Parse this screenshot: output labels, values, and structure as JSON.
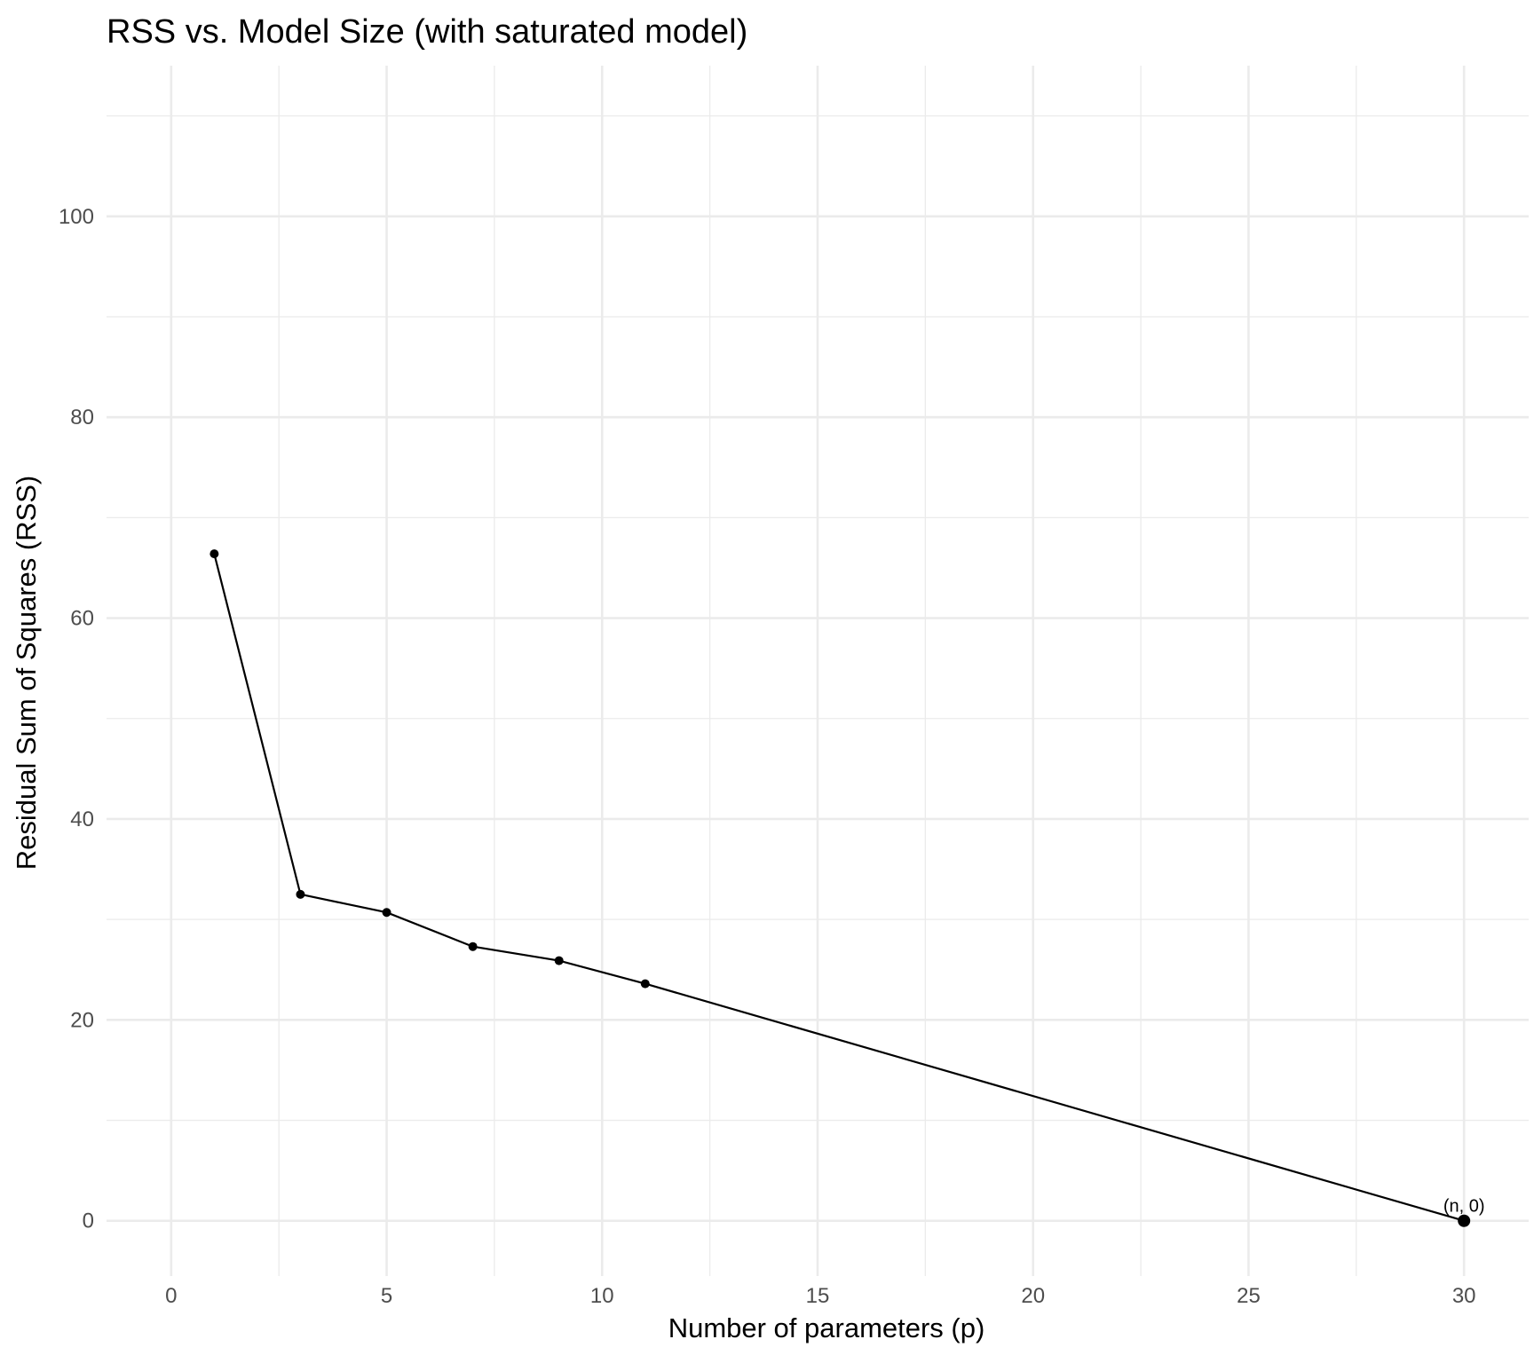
{
  "chart_data": {
    "type": "line",
    "title": "RSS vs. Model Size (with saturated model)",
    "xlabel": "Number of parameters (p)",
    "ylabel": "Residual Sum of Squares (RSS)",
    "xlim": [
      -1.5,
      31.5
    ],
    "ylim": [
      -5.5,
      115
    ],
    "x_ticks": [
      0,
      5,
      10,
      15,
      20,
      25,
      30
    ],
    "y_ticks": [
      0,
      20,
      40,
      60,
      80,
      100
    ],
    "x_minor_ticks": [
      2.5,
      7.5,
      12.5,
      17.5,
      22.5,
      27.5
    ],
    "y_minor_ticks": [
      10,
      30,
      50,
      70,
      90,
      110
    ],
    "grid": true,
    "series": [
      {
        "x": [
          1,
          3,
          5,
          7,
          9,
          11,
          30
        ],
        "y": [
          66.4,
          32.5,
          30.7,
          27.3,
          25.9,
          23.6,
          0
        ]
      }
    ],
    "highlight_point": {
      "x": 30,
      "y": 0
    },
    "annotations": [
      {
        "text": "(n, 0)",
        "x": 30,
        "y": 0
      }
    ],
    "colors": {
      "series": "#000000",
      "grid": "#ebebeb",
      "tick_text": "#4d4d4d"
    }
  }
}
